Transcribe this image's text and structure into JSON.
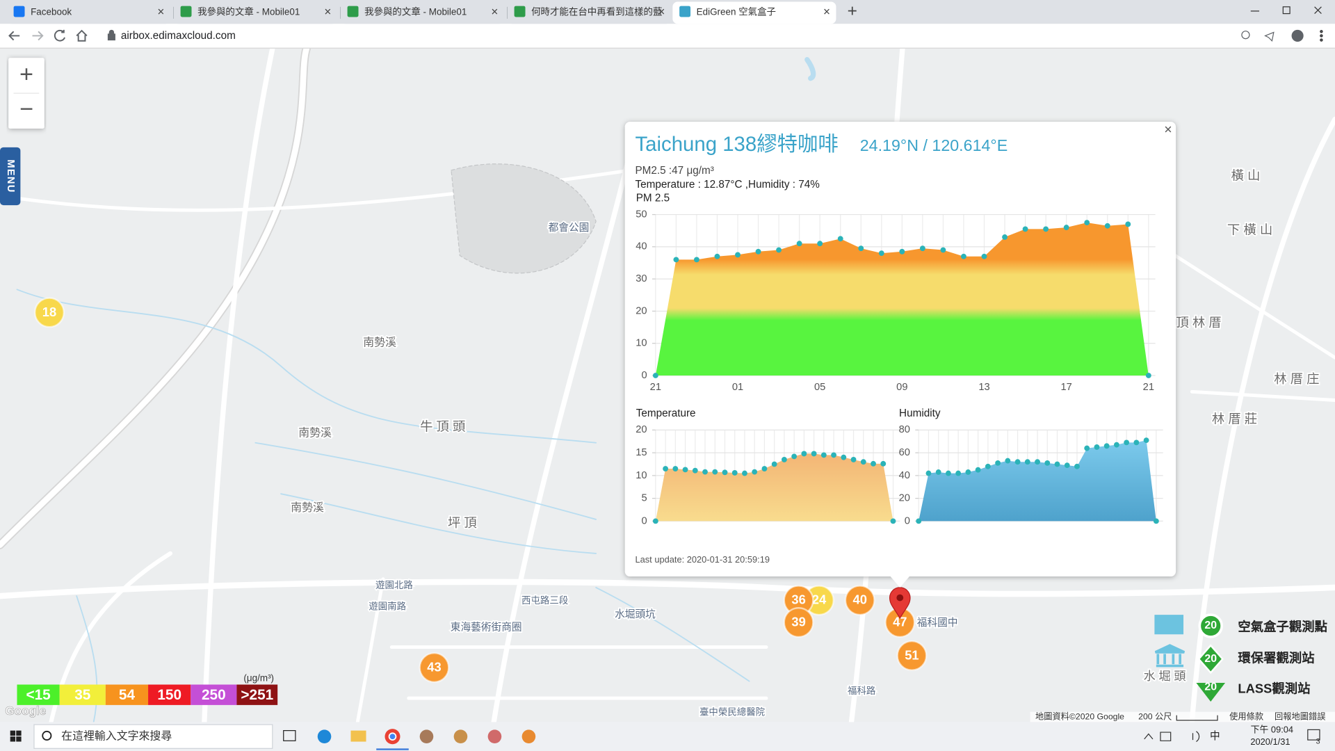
{
  "browser": {
    "tabs": [
      "Facebook",
      "我參與的文章 - Mobile01",
      "我參與的文章 - Mobile01",
      "何時才能在台中再看到這樣的藍",
      "EdiGreen 空氣盒子"
    ],
    "new_tab": "+",
    "url": "airbox.edimaxcloud.com"
  },
  "map": {
    "menu": "MENU",
    "zoom_in": "+",
    "zoom_out": "−",
    "places": [
      "南勢溪",
      "南勢溪",
      "南勢溪",
      "牛 頂 頭",
      "坪 頂",
      "都會公園",
      "東海藝術街商圈",
      "水堀頭坑",
      "福科路",
      "橫 山",
      "下 橫 山",
      "頂 林 厝",
      "林 厝 庄",
      "林 厝 莊",
      "水 堀 頭",
      "福科國中",
      "西屯路三段",
      "遊園北路",
      "遊園南路",
      "臺中榮民總醫院"
    ],
    "markers": [
      18,
      36,
      24,
      40,
      39,
      47,
      51,
      43
    ]
  },
  "popup": {
    "close": "×",
    "title": "Taichung 138繆特咖啡",
    "coords": "24.19°N / 120.614°E",
    "pm25": "PM2.5 :47 μg/m³",
    "conditions": "Temperature : 12.87°C ,Humidity : 74%",
    "last_update": "Last update: 2020-01-31 20:59:19",
    "charts": [
      {
        "type": "area",
        "title": "PM 2.5",
        "categories": [
          "21",
          null,
          null,
          null,
          "01",
          null,
          null,
          null,
          "05",
          null,
          null,
          null,
          "09",
          null,
          null,
          null,
          "13",
          null,
          null,
          null,
          "17",
          null,
          null,
          null,
          "21"
        ],
        "values": [
          0,
          36,
          36,
          37,
          37.5,
          38.5,
          39,
          41,
          41,
          42.5,
          39.5,
          38,
          38.5,
          39.5,
          39,
          37,
          37,
          43,
          45.5,
          45.5,
          46,
          47.5,
          46.5,
          47,
          0
        ],
        "ylim": [
          0,
          50
        ],
        "yticks": [
          0,
          10,
          20,
          30,
          40,
          50
        ],
        "grid": true,
        "colors": [
          "#58f43f",
          "#f6dc6c",
          "#f7972e"
        ],
        "point_color": "#2bb3b8"
      },
      {
        "type": "area",
        "title": "Temperature",
        "values": [
          0,
          11.5,
          11.5,
          11.3,
          11.1,
          10.8,
          10.8,
          10.7,
          10.6,
          10.5,
          10.8,
          11.5,
          12.5,
          13.5,
          14.2,
          14.8,
          14.8,
          14.5,
          14.5,
          14,
          13.5,
          13,
          12.6,
          12.6,
          0
        ],
        "ylim": [
          0,
          20
        ],
        "yticks": [
          0,
          5,
          10,
          15,
          20
        ],
        "grid": true,
        "colors": [
          "#f3b575",
          "#f8dc8e"
        ],
        "point_color": "#2bb3b8"
      },
      {
        "type": "area",
        "title": "Humidity",
        "values": [
          0,
          42,
          43,
          42,
          42,
          43,
          45,
          48,
          51,
          53,
          52,
          52,
          52,
          51,
          50,
          49,
          48,
          64,
          65,
          66,
          67,
          69,
          69,
          71,
          0
        ],
        "ylim": [
          0,
          80
        ],
        "yticks": [
          0,
          20,
          40,
          60,
          80
        ],
        "grid": true,
        "colors": [
          "#7ccaec",
          "#4ea2cc"
        ],
        "point_color": "#2bb3b8"
      }
    ]
  },
  "legend": {
    "unit": "(μg/m³)",
    "levels": [
      {
        "label": "<15",
        "color": "#4cf02a"
      },
      {
        "label": "35",
        "color": "#f2ef3a"
      },
      {
        "label": "54",
        "color": "#f7931e"
      },
      {
        "label": "150",
        "color": "#ee1b24"
      },
      {
        "label": "250",
        "color": "#c44fd6"
      },
      {
        "label": ">251",
        "color": "#8e1214"
      }
    ]
  },
  "stations": [
    {
      "label": "空氣盒子觀測點",
      "badge": "20"
    },
    {
      "label": "環保署觀測站",
      "badge": "20"
    },
    {
      "label": "LASS觀測站",
      "badge": "20"
    }
  ],
  "attribution": {
    "google": "Google",
    "map_data": "地圖資料©2020 Google",
    "scale": "200 公尺",
    "terms": "使用條款",
    "report": "回報地圖錯誤"
  },
  "taskbar": {
    "search": "在這裡輸入文字來搜尋",
    "ime": "中",
    "time": "下午 09:04",
    "date": "2020/1/31",
    "notifications": "3"
  }
}
